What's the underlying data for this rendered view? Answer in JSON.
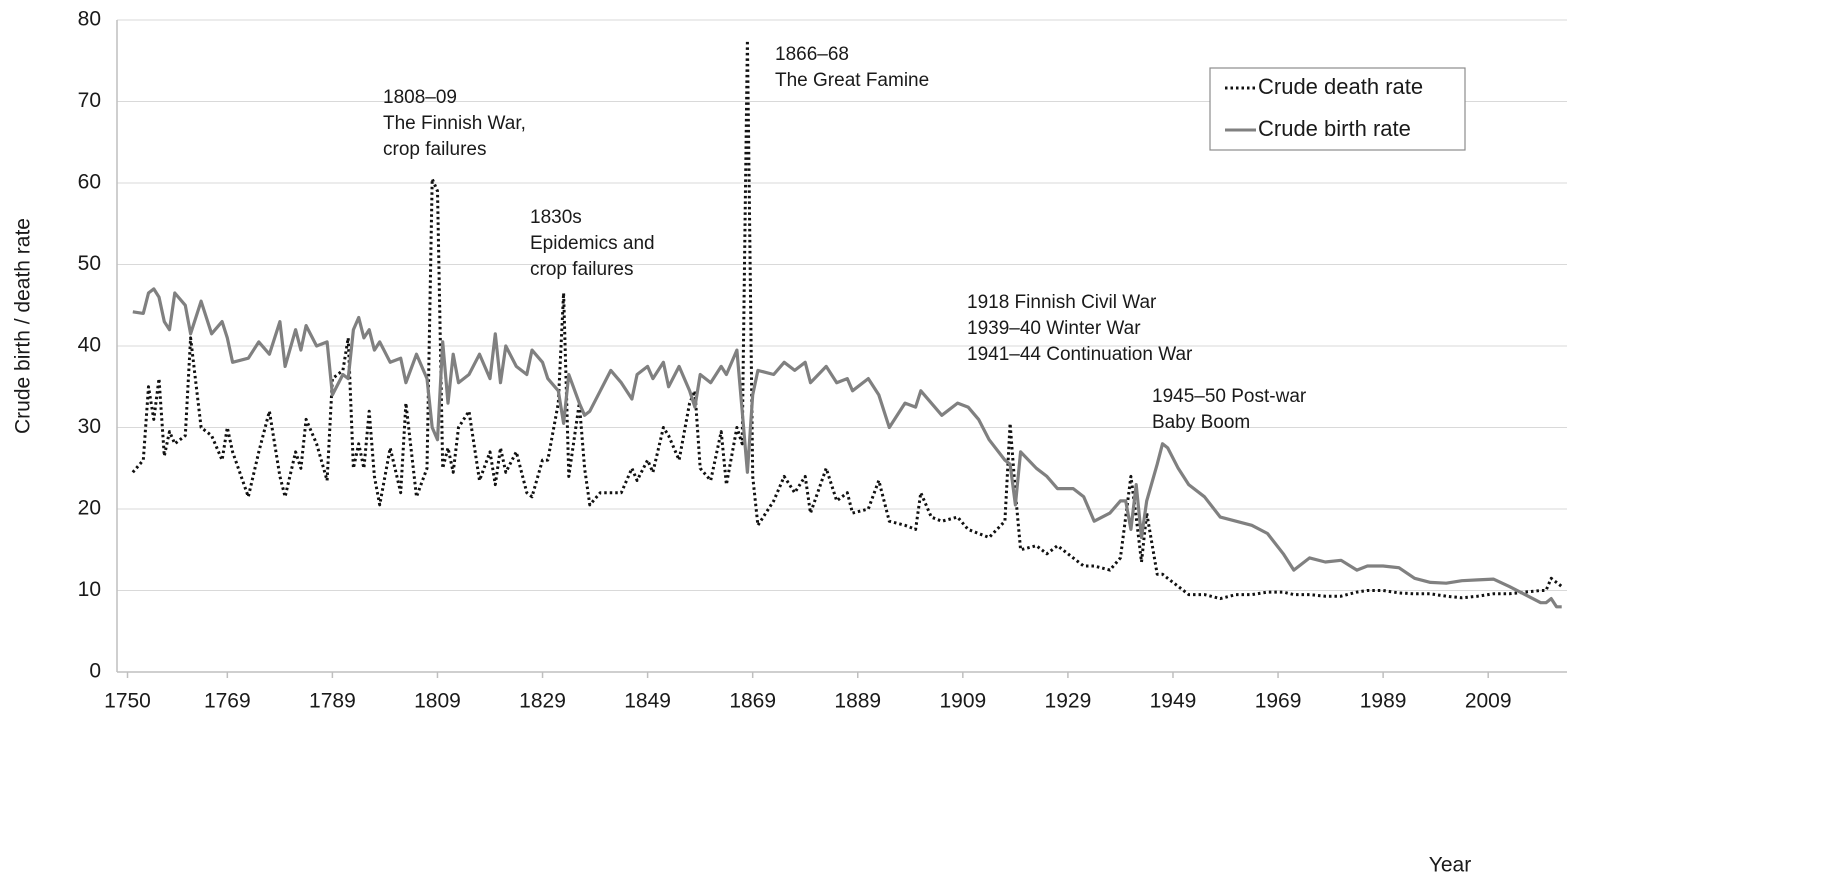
{
  "chart_data": {
    "type": "line",
    "x_label": "Year",
    "y_label": "Crude birth / death rate",
    "xlim": [
      1748,
      2024
    ],
    "xticks": [
      1750,
      1769,
      1789,
      1809,
      1829,
      1849,
      1869,
      1889,
      1909,
      1929,
      1949,
      1969,
      1989,
      2009
    ],
    "ylim": [
      0,
      80
    ],
    "yticks": [
      0,
      10,
      20,
      30,
      40,
      50,
      60,
      70,
      80
    ],
    "grid": true,
    "legend": "upper right",
    "x": [
      1751,
      1753,
      1754,
      1755,
      1756,
      1757,
      1758,
      1759,
      1761,
      1762,
      1764,
      1766,
      1768,
      1769,
      1770,
      1773,
      1775,
      1777,
      1779,
      1780,
      1782,
      1783,
      1784,
      1786,
      1788,
      1789,
      1791,
      1792,
      1793,
      1794,
      1795,
      1796,
      1797,
      1798,
      1800,
      1802,
      1803,
      1805,
      1807,
      1808,
      1809,
      1810,
      1811,
      1812,
      1813,
      1815,
      1817,
      1819,
      1820,
      1821,
      1822,
      1824,
      1826,
      1827,
      1829,
      1830,
      1832,
      1833,
      1834,
      1836,
      1837,
      1838,
      1840,
      1842,
      1844,
      1846,
      1847,
      1849,
      1850,
      1852,
      1853,
      1855,
      1857,
      1858,
      1859,
      1861,
      1863,
      1864,
      1866,
      1867,
      1868,
      1869,
      1870,
      1873,
      1875,
      1877,
      1879,
      1880,
      1883,
      1885,
      1887,
      1888,
      1891,
      1893,
      1895,
      1898,
      1900,
      1901,
      1903,
      1905,
      1908,
      1910,
      1912,
      1914,
      1917,
      1918,
      1919,
      1920,
      1923,
      1925,
      1927,
      1930,
      1932,
      1934,
      1937,
      1939,
      1940,
      1941,
      1942,
      1943,
      1944,
      1946,
      1947,
      1948,
      1950,
      1952,
      1955,
      1958,
      1961,
      1964,
      1967,
      1970,
      1972,
      1975,
      1978,
      1981,
      1984,
      1986,
      1989,
      1992,
      1995,
      1998,
      2001,
      2004,
      2007,
      2010,
      2013,
      2016,
      2019,
      2020,
      2021,
      2022,
      2023
    ],
    "series": [
      {
        "name": "Crude death rate",
        "color": "#111111",
        "dash": "dotted",
        "values": [
          24.5,
          26,
          35,
          31,
          36,
          26.5,
          29.5,
          28,
          29,
          41,
          30,
          29,
          26,
          30,
          27,
          21.5,
          27,
          32,
          24,
          21.5,
          27,
          25,
          31,
          28,
          23.5,
          36,
          37,
          41,
          25,
          28,
          25,
          32,
          24,
          20.5,
          27.5,
          22,
          33,
          21.5,
          25,
          60.5,
          59,
          25,
          27.5,
          24.5,
          30,
          32,
          23.5,
          27,
          23,
          27.5,
          24.5,
          27,
          22,
          21.5,
          26,
          26,
          33,
          46.5,
          24,
          33,
          25,
          20.5,
          22,
          22,
          22,
          25,
          23.5,
          26,
          24.5,
          30,
          29,
          26,
          33,
          34.5,
          25,
          23.5,
          29.5,
          23,
          30,
          28,
          77.5,
          24,
          18,
          21,
          24,
          22,
          24,
          19.5,
          25,
          21,
          22,
          19.5,
          20,
          23.5,
          18.5,
          18,
          17.5,
          22,
          19,
          18.5,
          19,
          17.5,
          17,
          16.5,
          18.5,
          30.5,
          22,
          15,
          15.5,
          14.5,
          15.5,
          14,
          13,
          13,
          12.5,
          14,
          19,
          24,
          19,
          13.5,
          19.5,
          12,
          12,
          11.5,
          10.5,
          9.5,
          9.5,
          9,
          9.5,
          9.5,
          9.8,
          9.8,
          9.5,
          9.5,
          9.3,
          9.3,
          9.8,
          10,
          10,
          9.7,
          9.6,
          9.6,
          9.3,
          9.1,
          9.3,
          9.6,
          9.6,
          9.8,
          10,
          10,
          11.5,
          11,
          10.5
        ]
      },
      {
        "name": "Crude birth rate",
        "color": "#808080",
        "dash": "solid",
        "values": [
          44.2,
          44,
          46.5,
          47,
          46,
          43,
          42,
          46.5,
          45,
          41.5,
          45.5,
          41.5,
          43,
          41,
          38,
          38.5,
          40.5,
          39,
          43,
          37.5,
          42,
          39.5,
          42.5,
          40,
          40.5,
          34,
          36.5,
          36,
          42,
          43.5,
          41,
          42,
          39.5,
          40.5,
          38,
          38.5,
          35.5,
          39,
          36,
          30,
          28.5,
          40.5,
          33,
          39,
          35.5,
          36.5,
          39,
          36,
          41.5,
          35.5,
          40,
          37.5,
          36.5,
          39.5,
          38,
          36,
          34.5,
          30.5,
          36.5,
          33,
          31.5,
          32,
          34.5,
          37,
          35.5,
          33.5,
          36.5,
          37.5,
          36,
          38,
          35,
          37.5,
          34.5,
          32.5,
          36.5,
          35.5,
          37.5,
          36.5,
          39.5,
          32,
          24.5,
          34,
          37,
          36.5,
          38,
          37,
          38,
          35.5,
          37.5,
          35.5,
          36,
          34.5,
          36,
          34,
          30,
          33,
          32.5,
          34.5,
          33,
          31.5,
          33,
          32.5,
          31,
          28.5,
          26,
          25.5,
          20.5,
          27,
          25,
          24,
          22.5,
          22.5,
          21.5,
          18.5,
          19.5,
          21,
          21,
          17.5,
          23,
          16.5,
          21,
          25.5,
          28,
          27.5,
          25,
          23,
          21.5,
          19,
          18.5,
          18,
          17,
          14.5,
          12.5,
          14,
          13.5,
          13.7,
          12.5,
          13,
          13,
          12.8,
          11.5,
          11,
          10.9,
          11.2,
          11.3,
          11.4,
          10.5,
          9.5,
          8.5,
          8.5,
          9,
          8,
          8
        ]
      }
    ],
    "annotations": [
      {
        "lines": [
          "1808–09",
          "The Finnish War,",
          "crop failures"
        ]
      },
      {
        "lines": [
          "1830s",
          "Epidemics and",
          "crop failures"
        ]
      },
      {
        "lines": [
          "1866–68",
          "The Great Famine"
        ]
      },
      {
        "lines": [
          "1918 Finnish Civil War",
          "1939–40 Winter War",
          "1941–44 Continuation War"
        ]
      },
      {
        "lines": [
          "1945–50 Post-war",
          "Baby Boom"
        ]
      }
    ]
  }
}
